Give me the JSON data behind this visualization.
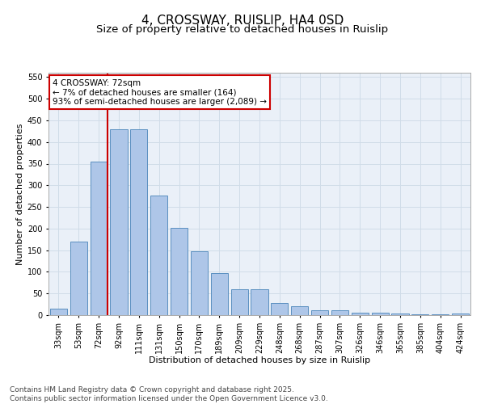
{
  "title1": "4, CROSSWAY, RUISLIP, HA4 0SD",
  "title2": "Size of property relative to detached houses in Ruislip",
  "xlabel": "Distribution of detached houses by size in Ruislip",
  "ylabel": "Number of detached properties",
  "categories": [
    "33sqm",
    "53sqm",
    "72sqm",
    "92sqm",
    "111sqm",
    "131sqm",
    "150sqm",
    "170sqm",
    "189sqm",
    "209sqm",
    "229sqm",
    "248sqm",
    "268sqm",
    "287sqm",
    "307sqm",
    "326sqm",
    "346sqm",
    "365sqm",
    "385sqm",
    "404sqm",
    "424sqm"
  ],
  "values": [
    15,
    170,
    355,
    430,
    430,
    277,
    202,
    148,
    98,
    60,
    60,
    28,
    20,
    12,
    12,
    6,
    5,
    3,
    1,
    1,
    4
  ],
  "bar_color": "#aec6e8",
  "bar_edge_color": "#5a8fc0",
  "vline_index": 2,
  "vline_color": "#cc0000",
  "annotation_text": "4 CROSSWAY: 72sqm\n← 7% of detached houses are smaller (164)\n93% of semi-detached houses are larger (2,089) →",
  "annotation_box_color": "#cc0000",
  "ylim": [
    0,
    560
  ],
  "yticks": [
    0,
    50,
    100,
    150,
    200,
    250,
    300,
    350,
    400,
    450,
    500,
    550
  ],
  "grid_color": "#d0dce8",
  "bg_color": "#eaf0f8",
  "footnote": "Contains HM Land Registry data © Crown copyright and database right 2025.\nContains public sector information licensed under the Open Government Licence v3.0.",
  "title1_fontsize": 11,
  "title2_fontsize": 9.5,
  "label_fontsize": 8,
  "tick_fontsize": 7,
  "annotation_fontsize": 7.5,
  "footnote_fontsize": 6.5
}
